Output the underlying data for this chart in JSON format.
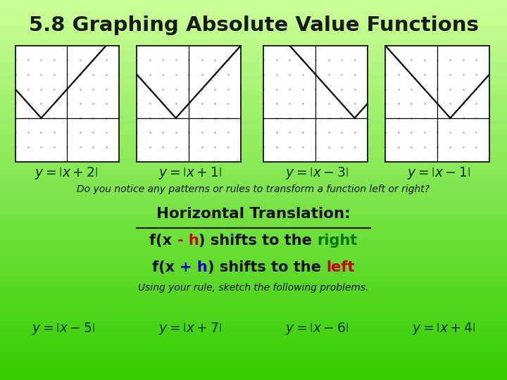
{
  "title": "5.8 Graphing Absolute Value Functions",
  "bg_color_top": "#33cc00",
  "bg_color_bottom": "#ccff99",
  "title_color": "#1a1a1a",
  "graph_shifts": [
    -2,
    -1,
    3,
    1
  ],
  "top_labels": [
    "y = |x + 2|",
    "y = |x + 1|",
    "y = |x - 3|",
    "y = |x - 1|"
  ],
  "bottom_labels": [
    "y = |x - 5|",
    "y = |x + 7|",
    "y = |x - 6|",
    "y = |x + 4|"
  ],
  "question_text": "Do you notice any patterns or rules to transform a function left or right?",
  "rule_title": "Horizontal Translation:",
  "rule_line1": [
    "f(x ",
    "- h",
    ") shifts to the ",
    "right"
  ],
  "rule_line1_colors": [
    "#111111",
    "#cc0000",
    "#111111",
    "#007700"
  ],
  "rule_line2": [
    "f(x ",
    "+ h",
    ") shifts to the ",
    "left"
  ],
  "rule_line2_colors": [
    "#111111",
    "#0000cc",
    "#111111",
    "#cc0000"
  ],
  "using_text": "Using your rule, sketch the following problems.",
  "graph_bg": "#ffffff",
  "graph_grid_color": "#aaaadd",
  "label_color": "#003300"
}
